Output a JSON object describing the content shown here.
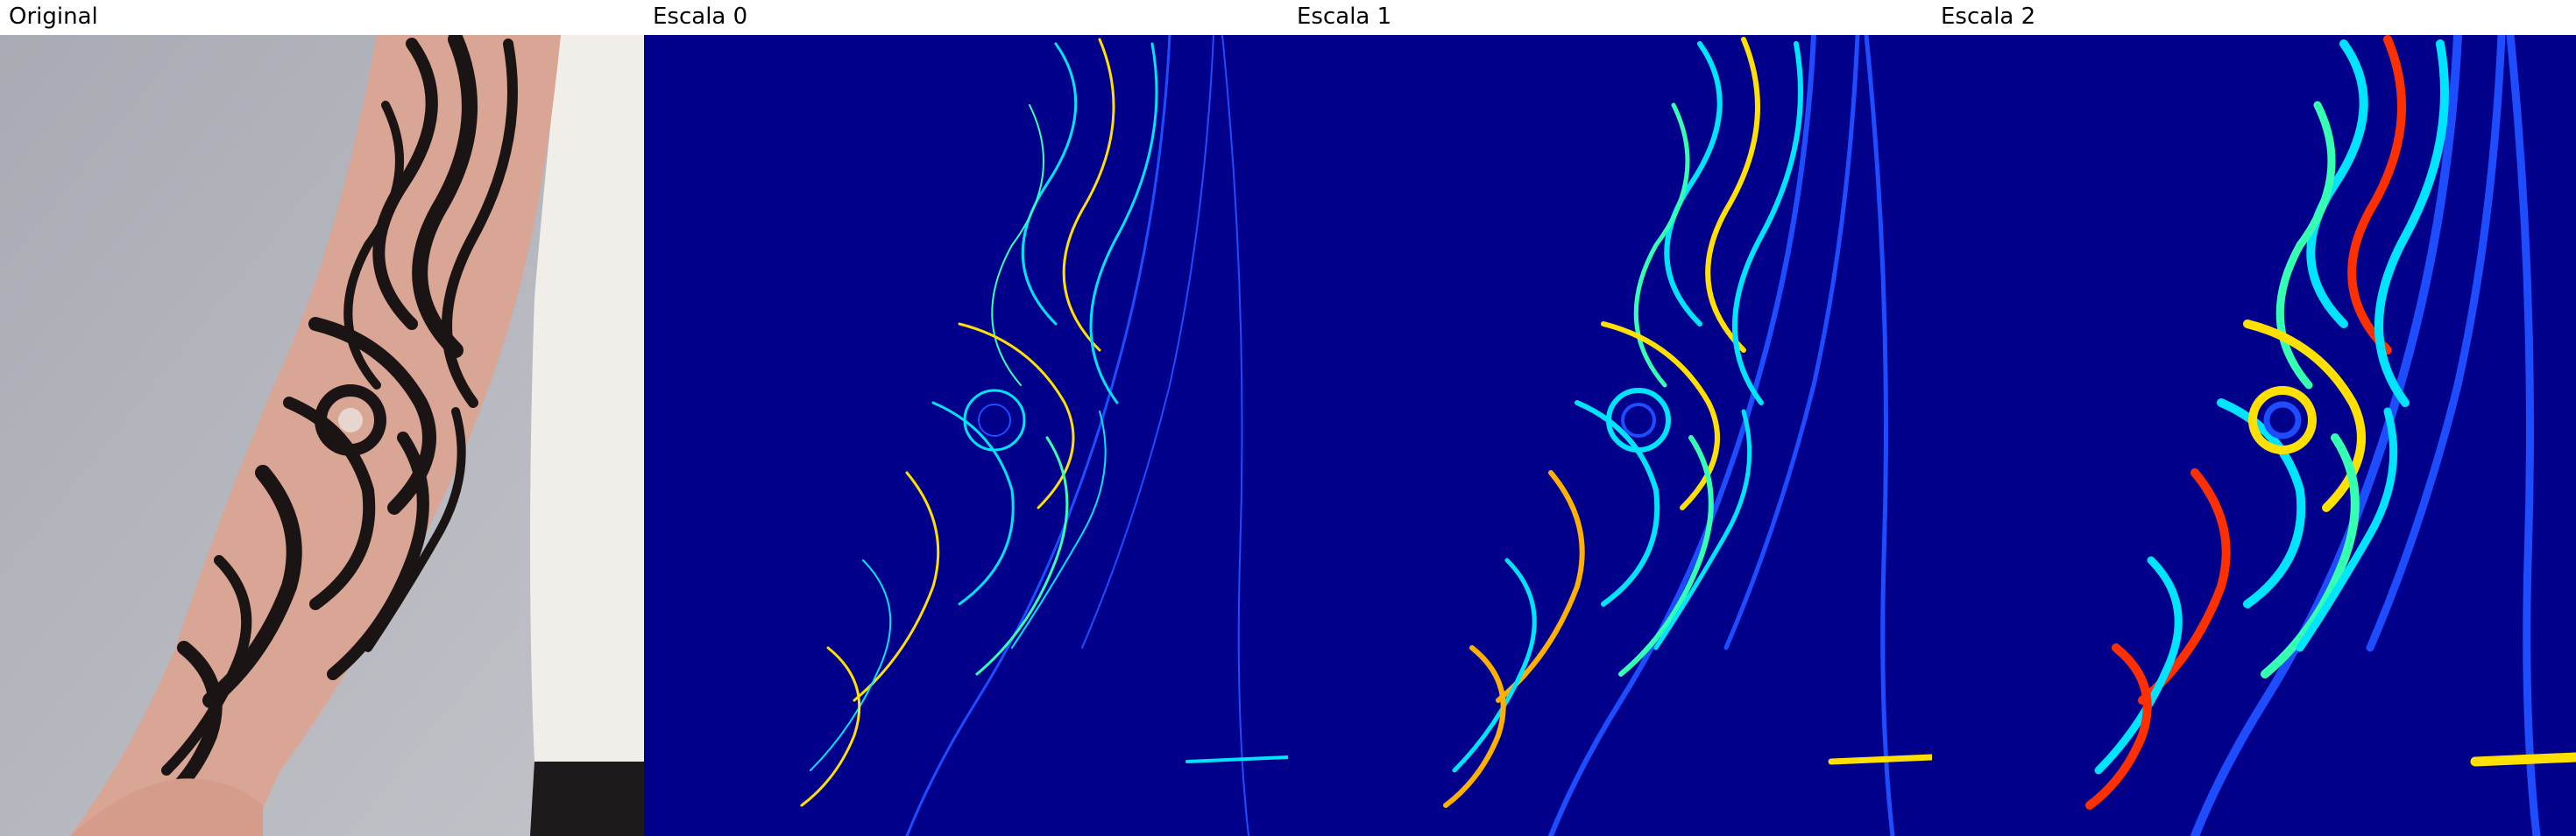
{
  "panels": [
    {
      "title": "Original",
      "kind": "photo"
    },
    {
      "title": "Escala 0",
      "kind": "edge-map"
    },
    {
      "title": "Escala 1",
      "kind": "edge-map"
    },
    {
      "title": "Escala 2",
      "kind": "edge-map"
    }
  ],
  "colors": {
    "header_bg": "#ffffff",
    "title_text": "#000000",
    "photo_background": "#aeb0b8",
    "skin": "#d9a594",
    "tattoo_ink": "#1a1414",
    "shirt": "#f1eee9",
    "edge_background": "#00008b",
    "edge_low": "#0066ff",
    "edge_mid": "#00e5ff",
    "edge_high": "#ffe000",
    "edge_peak": "#ff3000"
  }
}
